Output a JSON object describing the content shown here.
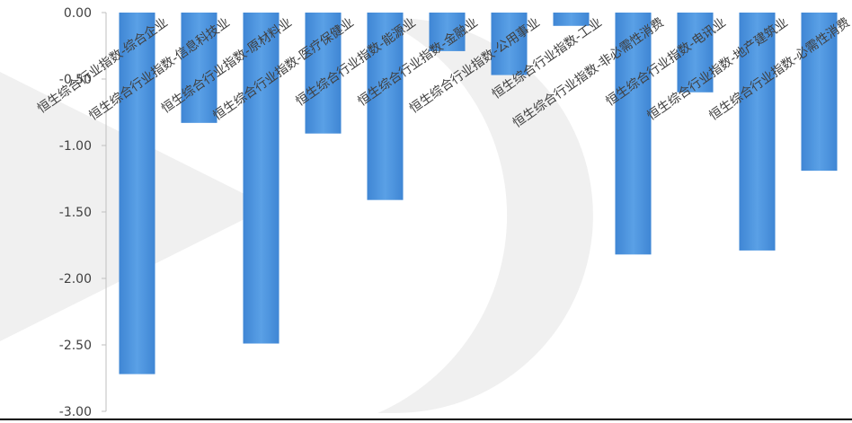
{
  "chart_data": {
    "type": "bar",
    "title": "",
    "xlabel": "",
    "ylabel": "",
    "ylim": [
      -3.0,
      0.0
    ],
    "yticks": [
      "0.00",
      "-0.50",
      "-1.00",
      "-1.50",
      "-2.00",
      "-2.50",
      "-3.00"
    ],
    "grid": false,
    "legend": "none",
    "categories": [
      "恒生综合行业指数-综合企业",
      "恒生综合行业指数-信息科技业",
      "恒生综合行业指数-原材料业",
      "恒生综合行业指数-医疗保健业",
      "恒生综合行业指数-能源业",
      "恒生综合行业指数-金融业",
      "恒生综合行业指数-公用事业",
      "恒生综合行业指数-工业",
      "恒生综合行业指数-非必需性消费",
      "恒生综合行业指数-电讯业",
      "恒生综合行业指数-地产建筑业",
      "恒生综合行业指数-必需性消费"
    ],
    "values": [
      -2.72,
      -0.83,
      -2.49,
      -0.91,
      -1.41,
      -0.29,
      -0.47,
      -0.1,
      -1.82,
      -0.6,
      -1.79,
      -1.19
    ],
    "bar_color": "#4a8fd8"
  }
}
